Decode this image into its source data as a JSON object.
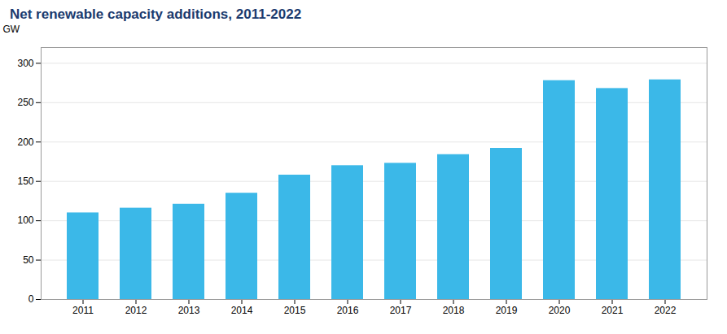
{
  "chart_data": {
    "type": "bar",
    "title": "Net renewable capacity additions, 2011-2022",
    "ylabel": "GW",
    "categories": [
      "2011",
      "2012",
      "2013",
      "2014",
      "2015",
      "2016",
      "2017",
      "2018",
      "2019",
      "2020",
      "2021",
      "2022"
    ],
    "values": [
      110,
      116,
      121,
      135,
      158,
      170,
      173,
      184,
      192,
      278,
      268,
      279
    ],
    "color": "#3BB8E8",
    "ylim": [
      0,
      320
    ],
    "yticks": [
      0,
      50,
      100,
      150,
      200,
      250,
      300
    ],
    "grid": true
  }
}
